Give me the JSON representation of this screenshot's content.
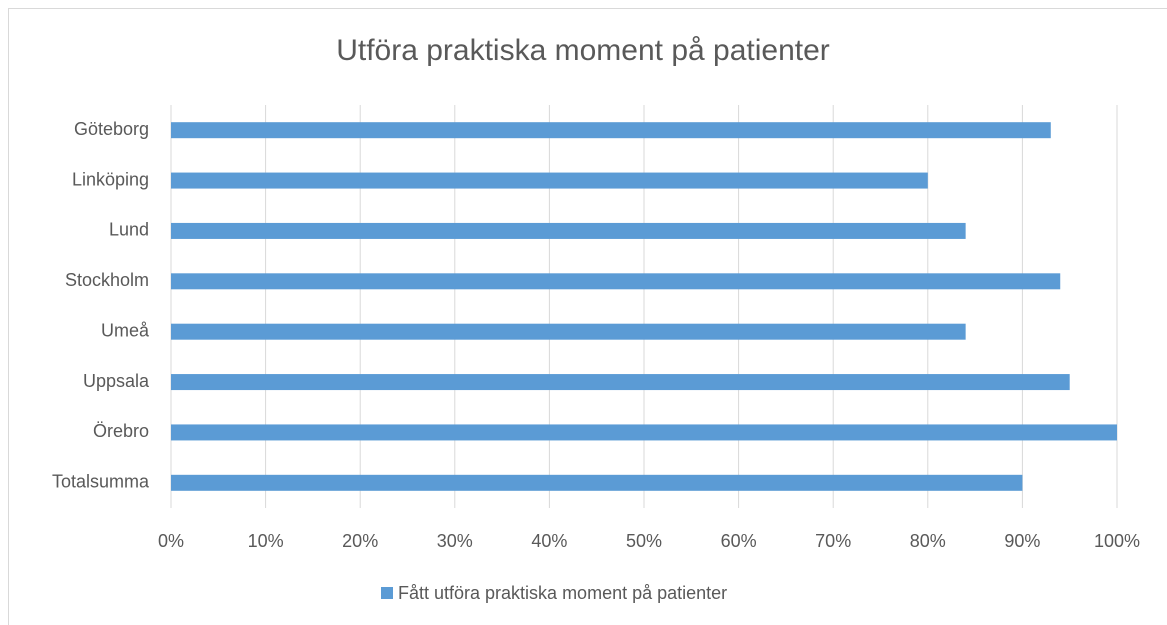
{
  "chart_data": {
    "type": "bar",
    "orientation": "horizontal",
    "title": "Utföra praktiska moment på patienter",
    "categories": [
      "Göteborg",
      "Linköping",
      "Lund",
      "Stockholm",
      "Umeå",
      "Uppsala",
      "Örebro",
      "Totalsumma"
    ],
    "series": [
      {
        "name": "Fått utföra praktiska moment på patienter",
        "color": "#5b9bd5",
        "values": [
          93,
          80,
          84,
          94,
          84,
          95,
          100,
          90
        ]
      }
    ],
    "xlim": [
      0,
      100
    ],
    "xticks": [
      {
        "value": 0,
        "label": "0%"
      },
      {
        "value": 10,
        "label": "10%"
      },
      {
        "value": 20,
        "label": "20%"
      },
      {
        "value": 30,
        "label": "30%"
      },
      {
        "value": 40,
        "label": "40%"
      },
      {
        "value": 50,
        "label": "50%"
      },
      {
        "value": 60,
        "label": "60%"
      },
      {
        "value": 70,
        "label": "70%"
      },
      {
        "value": 80,
        "label": "80%"
      },
      {
        "value": 90,
        "label": "90%"
      },
      {
        "value": 100,
        "label": "100%"
      }
    ],
    "grid": true,
    "legend": "bottom"
  }
}
